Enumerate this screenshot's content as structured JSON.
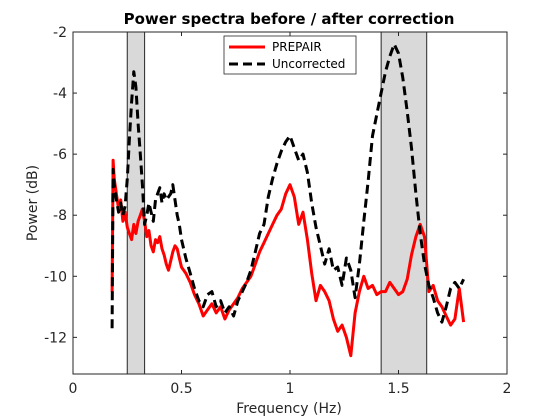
{
  "chart_data": {
    "type": "line",
    "title": "Power spectra before / after correction",
    "xlabel": "Frequency (Hz)",
    "ylabel": "Power (dB)",
    "xlim": [
      0,
      2
    ],
    "ylim": [
      -13.2,
      -2
    ],
    "xticks": [
      0,
      0.5,
      1,
      1.5,
      2
    ],
    "xtick_labels": [
      "0",
      "0.5",
      "1",
      "1.5",
      "2"
    ],
    "yticks": [
      -12,
      -10,
      -8,
      -6,
      -4,
      -2
    ],
    "ytick_labels": [
      "-12",
      "-10",
      "-8",
      "-6",
      "-4",
      "-2"
    ],
    "grid": false,
    "legend_position": "top-center",
    "shaded_bands": [
      {
        "x0": 0.25,
        "x1": 0.33
      },
      {
        "x0": 1.42,
        "x1": 1.63
      }
    ],
    "series": [
      {
        "name": "PREPAIR",
        "color": "#ff0000",
        "style": "solid",
        "x": [
          0.18,
          0.185,
          0.19,
          0.2,
          0.21,
          0.22,
          0.23,
          0.24,
          0.25,
          0.26,
          0.27,
          0.28,
          0.29,
          0.3,
          0.31,
          0.32,
          0.33,
          0.34,
          0.35,
          0.36,
          0.37,
          0.38,
          0.39,
          0.4,
          0.41,
          0.42,
          0.43,
          0.44,
          0.45,
          0.46,
          0.47,
          0.48,
          0.49,
          0.5,
          0.52,
          0.54,
          0.56,
          0.58,
          0.6,
          0.62,
          0.64,
          0.66,
          0.68,
          0.7,
          0.72,
          0.74,
          0.76,
          0.78,
          0.8,
          0.82,
          0.84,
          0.86,
          0.88,
          0.9,
          0.92,
          0.94,
          0.96,
          0.98,
          1.0,
          1.02,
          1.04,
          1.06,
          1.08,
          1.1,
          1.12,
          1.14,
          1.16,
          1.18,
          1.2,
          1.22,
          1.24,
          1.26,
          1.28,
          1.3,
          1.32,
          1.34,
          1.36,
          1.38,
          1.4,
          1.42,
          1.44,
          1.46,
          1.48,
          1.5,
          1.52,
          1.54,
          1.56,
          1.58,
          1.6,
          1.62,
          1.64,
          1.66,
          1.68,
          1.7,
          1.72,
          1.74,
          1.76,
          1.78,
          1.8
        ],
        "y": [
          -10.5,
          -6.2,
          -6.8,
          -7.3,
          -7.8,
          -7.5,
          -8.2,
          -7.9,
          -8.4,
          -8.6,
          -8.8,
          -8.3,
          -8.6,
          -8.2,
          -8.0,
          -7.8,
          -8.2,
          -8.7,
          -8.5,
          -9.0,
          -9.2,
          -8.8,
          -8.9,
          -8.7,
          -9.1,
          -9.3,
          -9.6,
          -9.8,
          -9.5,
          -9.2,
          -9.0,
          -9.1,
          -9.4,
          -9.7,
          -9.9,
          -10.2,
          -10.6,
          -10.9,
          -11.3,
          -11.1,
          -10.9,
          -11.2,
          -11.0,
          -11.4,
          -11.1,
          -10.9,
          -10.7,
          -10.4,
          -10.2,
          -10.0,
          -9.6,
          -9.2,
          -8.9,
          -8.6,
          -8.3,
          -8.0,
          -7.8,
          -7.3,
          -7.0,
          -7.4,
          -8.3,
          -7.9,
          -8.8,
          -9.9,
          -10.8,
          -10.3,
          -10.5,
          -10.8,
          -11.4,
          -11.8,
          -11.6,
          -12.0,
          -12.6,
          -11.2,
          -10.5,
          -10.0,
          -10.4,
          -10.3,
          -10.6,
          -10.5,
          -10.5,
          -10.2,
          -10.4,
          -10.6,
          -10.5,
          -10.1,
          -9.3,
          -8.7,
          -8.3,
          -8.7,
          -10.5,
          -10.3,
          -10.8,
          -11.0,
          -11.3,
          -11.6,
          -11.4,
          -10.4,
          -11.5
        ]
      },
      {
        "name": "Uncorrected",
        "color": "#000000",
        "style": "dashed",
        "x": [
          0.18,
          0.185,
          0.19,
          0.2,
          0.21,
          0.22,
          0.23,
          0.24,
          0.25,
          0.26,
          0.27,
          0.28,
          0.29,
          0.3,
          0.31,
          0.32,
          0.33,
          0.34,
          0.35,
          0.36,
          0.37,
          0.38,
          0.39,
          0.4,
          0.41,
          0.42,
          0.43,
          0.44,
          0.45,
          0.46,
          0.47,
          0.48,
          0.49,
          0.5,
          0.52,
          0.54,
          0.56,
          0.58,
          0.6,
          0.62,
          0.64,
          0.66,
          0.68,
          0.7,
          0.72,
          0.74,
          0.76,
          0.78,
          0.8,
          0.82,
          0.84,
          0.86,
          0.88,
          0.9,
          0.92,
          0.94,
          0.96,
          0.98,
          1.0,
          1.02,
          1.04,
          1.06,
          1.08,
          1.1,
          1.12,
          1.14,
          1.16,
          1.18,
          1.2,
          1.22,
          1.24,
          1.26,
          1.28,
          1.3,
          1.32,
          1.34,
          1.36,
          1.38,
          1.4,
          1.42,
          1.44,
          1.46,
          1.48,
          1.5,
          1.52,
          1.54,
          1.56,
          1.58,
          1.6,
          1.62,
          1.64,
          1.66,
          1.68,
          1.7,
          1.72,
          1.74,
          1.76,
          1.78,
          1.8
        ],
        "y": [
          -11.7,
          -6.5,
          -7.0,
          -7.5,
          -7.9,
          -7.6,
          -8.0,
          -7.7,
          -6.8,
          -5.5,
          -4.3,
          -3.3,
          -3.8,
          -5.0,
          -6.0,
          -7.0,
          -8.3,
          -8.0,
          -7.6,
          -7.9,
          -8.2,
          -7.5,
          -7.3,
          -7.1,
          -7.6,
          -7.3,
          -7.5,
          -7.4,
          -7.3,
          -7.0,
          -7.5,
          -8.0,
          -8.3,
          -8.8,
          -9.4,
          -9.9,
          -10.4,
          -10.8,
          -11.0,
          -10.6,
          -10.5,
          -11.0,
          -10.8,
          -11.2,
          -11.0,
          -11.3,
          -10.8,
          -10.5,
          -10.2,
          -9.8,
          -9.2,
          -8.6,
          -8.3,
          -7.4,
          -6.8,
          -6.3,
          -5.9,
          -5.6,
          -5.4,
          -5.8,
          -6.2,
          -6.0,
          -6.6,
          -7.6,
          -8.4,
          -9.0,
          -9.6,
          -9.1,
          -9.8,
          -9.7,
          -10.3,
          -9.4,
          -9.8,
          -10.7,
          -9.6,
          -8.2,
          -6.9,
          -5.4,
          -4.7,
          -4.0,
          -3.3,
          -2.8,
          -2.4,
          -2.7,
          -3.5,
          -4.6,
          -5.8,
          -7.3,
          -8.6,
          -9.6,
          -10.3,
          -10.7,
          -11.2,
          -11.5,
          -11.0,
          -10.4,
          -10.2,
          -10.4,
          -10.1
        ]
      }
    ]
  }
}
